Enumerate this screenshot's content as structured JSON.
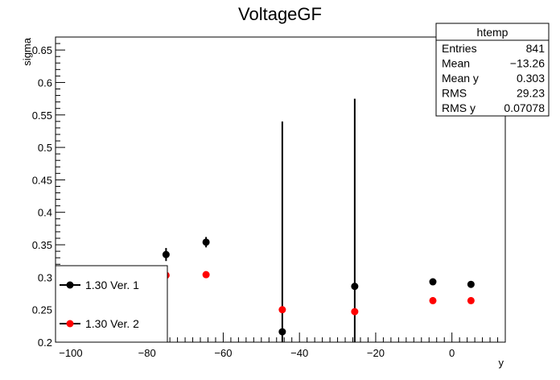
{
  "chart_data": {
    "type": "scatter",
    "title": "VoltageGF",
    "xlabel": "y",
    "ylabel": "sigma",
    "xlim": [
      -104,
      14
    ],
    "ylim": [
      0.2,
      0.67
    ],
    "x_ticks": [
      -100,
      -80,
      -60,
      -40,
      -20,
      0
    ],
    "y_ticks": [
      0.2,
      0.25,
      0.3,
      0.35,
      0.4,
      0.45,
      0.5,
      0.55,
      0.6,
      0.65
    ],
    "series": [
      {
        "name": "1.30 Ver. 1",
        "color": "#000000",
        "points": [
          {
            "x": -75,
            "y": 0.335,
            "err": 0.01
          },
          {
            "x": -64.5,
            "y": 0.354,
            "err": 0.008
          },
          {
            "x": -44.5,
            "y": 0.216,
            "err": 0.324
          },
          {
            "x": -25.5,
            "y": 0.286,
            "err": 0.289
          },
          {
            "x": -5,
            "y": 0.293,
            "err": 0.003
          },
          {
            "x": 5,
            "y": 0.289,
            "err": 0.003
          }
        ]
      },
      {
        "name": "1.30 Ver. 2",
        "color": "#ff0000",
        "points": [
          {
            "x": -75,
            "y": 0.303,
            "err": 0
          },
          {
            "x": -64.5,
            "y": 0.304,
            "err": 0
          },
          {
            "x": -44.5,
            "y": 0.25,
            "err": 0
          },
          {
            "x": -25.5,
            "y": 0.247,
            "err": 0
          },
          {
            "x": -5,
            "y": 0.264,
            "err": 0
          },
          {
            "x": 5,
            "y": 0.264,
            "err": 0
          }
        ]
      }
    ],
    "stats": {
      "title": "htemp",
      "rows": [
        {
          "label": "Entries",
          "value": "841"
        },
        {
          "label": "Mean",
          "value": "−13.26"
        },
        {
          "label": "Mean y",
          "value": "0.303"
        },
        {
          "label": "RMS",
          "value": "29.23"
        },
        {
          "label": "RMS y",
          "value": "0.07078"
        }
      ]
    },
    "legend": {
      "position": "bottom-left",
      "entries": [
        "1.30 Ver. 1",
        "1.30 Ver. 2"
      ]
    },
    "grid": false
  }
}
